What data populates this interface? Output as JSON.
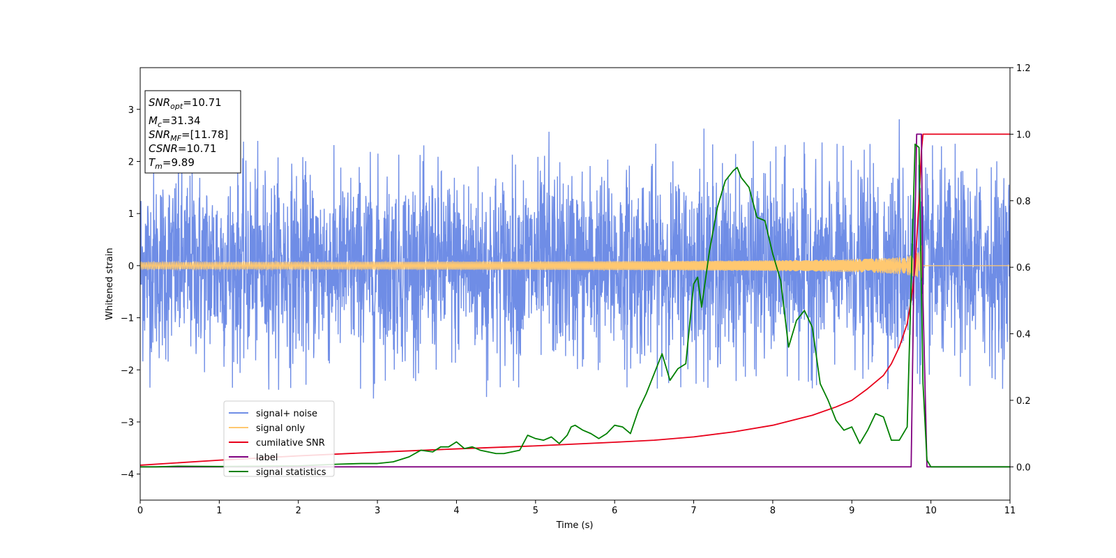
{
  "chart_data": {
    "type": "line",
    "xlabel": "Time (s)",
    "ylabel_left": "Whitened strain",
    "ylabel_right": "",
    "xlim": [
      0,
      11
    ],
    "ylim_left": [
      -4.5,
      3.8
    ],
    "ylim_right": [
      -0.1,
      1.2
    ],
    "x_ticks": [
      "0",
      "1",
      "2",
      "3",
      "4",
      "5",
      "6",
      "7",
      "8",
      "9",
      "10",
      "11"
    ],
    "y_left_ticks": [
      "3",
      "2",
      "1",
      "0",
      "−1",
      "−2",
      "−3",
      "−4"
    ],
    "y_left_tick_values": [
      3,
      2,
      1,
      0,
      -1,
      -2,
      -3,
      -4
    ],
    "y_right_ticks": [
      "1.2",
      "1.0",
      "0.8",
      "0.6",
      "0.4",
      "0.2",
      "0.0"
    ],
    "y_right_tick_values": [
      1.2,
      1.0,
      0.8,
      0.6,
      0.4,
      0.2,
      0.0
    ],
    "grid": false,
    "legend_position": "lower-left",
    "info_box": {
      "snr_opt_label": "SNR",
      "snr_opt_sub": "opt",
      "snr_opt_value": "=10.71",
      "mc_label": "M",
      "mc_sub": "c",
      "mc_value": "=31.34",
      "snr_mf_label": "SNR",
      "snr_mf_sub": "MF",
      "snr_mf_value": "=[11.78]",
      "csnr_label": "CSNR",
      "csnr_value": "=10.71",
      "tm_label": "T",
      "tm_sub": "m",
      "tm_value": "=9.89"
    },
    "series": [
      {
        "name": "signal+ noise",
        "axis": "left",
        "color": "#6f8de6",
        "kind": "noise",
        "envelope": 1.05,
        "x_range": [
          0,
          11
        ],
        "spikes": [
          {
            "x": 7.13,
            "y": 2.63
          },
          {
            "x": 9.6,
            "y": 2.81
          },
          {
            "x": 5.17,
            "y": 2.57
          },
          {
            "x": 2.95,
            "y": -2.55
          },
          {
            "x": 4.38,
            "y": -2.52
          }
        ]
      },
      {
        "name": "signal only",
        "axis": "left",
        "color": "#ffc870",
        "kind": "chirp",
        "merger_time": 9.89,
        "peak_amplitude": 0.6
      },
      {
        "name": "cumilative SNR",
        "axis": "right",
        "color": "#e8001a",
        "x": [
          0,
          1,
          2,
          3,
          4,
          5,
          6,
          6.5,
          7,
          7.5,
          8,
          8.5,
          8.8,
          9.0,
          9.2,
          9.4,
          9.5,
          9.6,
          9.7,
          9.75,
          9.8,
          9.85,
          9.88,
          9.9,
          10,
          11
        ],
        "y": [
          0.005,
          0.02,
          0.033,
          0.044,
          0.054,
          0.063,
          0.074,
          0.08,
          0.09,
          0.105,
          0.125,
          0.155,
          0.18,
          0.2,
          0.235,
          0.275,
          0.31,
          0.36,
          0.43,
          0.5,
          0.6,
          0.8,
          0.95,
          1.0,
          1.0,
          1.0
        ]
      },
      {
        "name": "label",
        "axis": "right",
        "color": "#800080",
        "x": [
          0,
          9.75,
          9.78,
          9.82,
          9.85,
          9.86,
          9.88,
          9.9,
          9.95,
          11
        ],
        "y": [
          0,
          0,
          0.5,
          1.0,
          1.0,
          1.0,
          1.0,
          0.5,
          0,
          0
        ]
      },
      {
        "name": "signal statistics",
        "axis": "right",
        "color": "#008000",
        "x": [
          0,
          0.2,
          0.5,
          1.0,
          1.5,
          2.0,
          2.5,
          2.8,
          3.0,
          3.2,
          3.4,
          3.55,
          3.7,
          3.8,
          3.9,
          4.0,
          4.1,
          4.2,
          4.3,
          4.4,
          4.5,
          4.6,
          4.7,
          4.8,
          4.9,
          5.0,
          5.1,
          5.2,
          5.3,
          5.4,
          5.45,
          5.5,
          5.6,
          5.7,
          5.8,
          5.9,
          6.0,
          6.1,
          6.2,
          6.3,
          6.4,
          6.5,
          6.55,
          6.6,
          6.7,
          6.8,
          6.9,
          7.0,
          7.05,
          7.1,
          7.2,
          7.3,
          7.4,
          7.5,
          7.55,
          7.6,
          7.7,
          7.8,
          7.9,
          8.0,
          8.1,
          8.2,
          8.3,
          8.4,
          8.5,
          8.6,
          8.7,
          8.8,
          8.9,
          9.0,
          9.1,
          9.2,
          9.3,
          9.4,
          9.5,
          9.6,
          9.7,
          9.75,
          9.8,
          9.85,
          9.9,
          9.95,
          10.0,
          11
        ],
        "y": [
          0,
          0.0,
          0.002,
          0.001,
          0.002,
          0.003,
          0.008,
          0.01,
          0.01,
          0.015,
          0.03,
          0.05,
          0.045,
          0.06,
          0.06,
          0.075,
          0.055,
          0.06,
          0.05,
          0.045,
          0.04,
          0.04,
          0.045,
          0.05,
          0.095,
          0.085,
          0.08,
          0.09,
          0.07,
          0.095,
          0.12,
          0.125,
          0.11,
          0.1,
          0.085,
          0.1,
          0.125,
          0.12,
          0.1,
          0.17,
          0.22,
          0.28,
          0.31,
          0.34,
          0.26,
          0.295,
          0.31,
          0.55,
          0.57,
          0.48,
          0.65,
          0.78,
          0.86,
          0.89,
          0.9,
          0.87,
          0.84,
          0.75,
          0.74,
          0.64,
          0.56,
          0.36,
          0.44,
          0.47,
          0.42,
          0.25,
          0.2,
          0.14,
          0.11,
          0.12,
          0.07,
          0.11,
          0.16,
          0.15,
          0.08,
          0.08,
          0.12,
          0.55,
          0.97,
          0.96,
          0.25,
          0.02,
          0.0,
          0.0
        ]
      }
    ]
  }
}
